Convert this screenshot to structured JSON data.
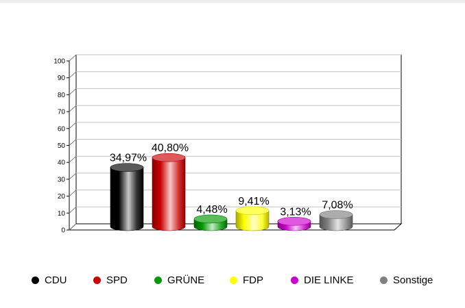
{
  "chart_data": {
    "type": "bar",
    "categories": [
      "CDU",
      "SPD",
      "GRÜNE",
      "FDP",
      "DIE LINKE",
      "Sonstige"
    ],
    "values": [
      34.97,
      40.8,
      4.48,
      9.41,
      3.13,
      7.08
    ],
    "value_labels": [
      "34,97%",
      "40,80%",
      "4,48%",
      "9,41%",
      "3,13%",
      "7,08%"
    ],
    "colors": [
      "#000000",
      "#cc0000",
      "#009900",
      "#ffff00",
      "#cc00cc",
      "#808080"
    ],
    "ylim": [
      0,
      100
    ],
    "yticks": [
      "0",
      "10",
      "20",
      "30",
      "40",
      "50",
      "60",
      "70",
      "80",
      "90",
      "100"
    ],
    "grid": true,
    "legend_position": "bottom",
    "style": "3d-cylinder"
  },
  "legend": [
    {
      "label": "CDU",
      "color": "#000000"
    },
    {
      "label": "SPD",
      "color": "#cc0000"
    },
    {
      "label": "GRÜNE",
      "color": "#009900"
    },
    {
      "label": "FDP",
      "color": "#ffff00"
    },
    {
      "label": "DIE LINKE",
      "color": "#cc00cc"
    },
    {
      "label": "Sonstige",
      "color": "#808080"
    }
  ]
}
